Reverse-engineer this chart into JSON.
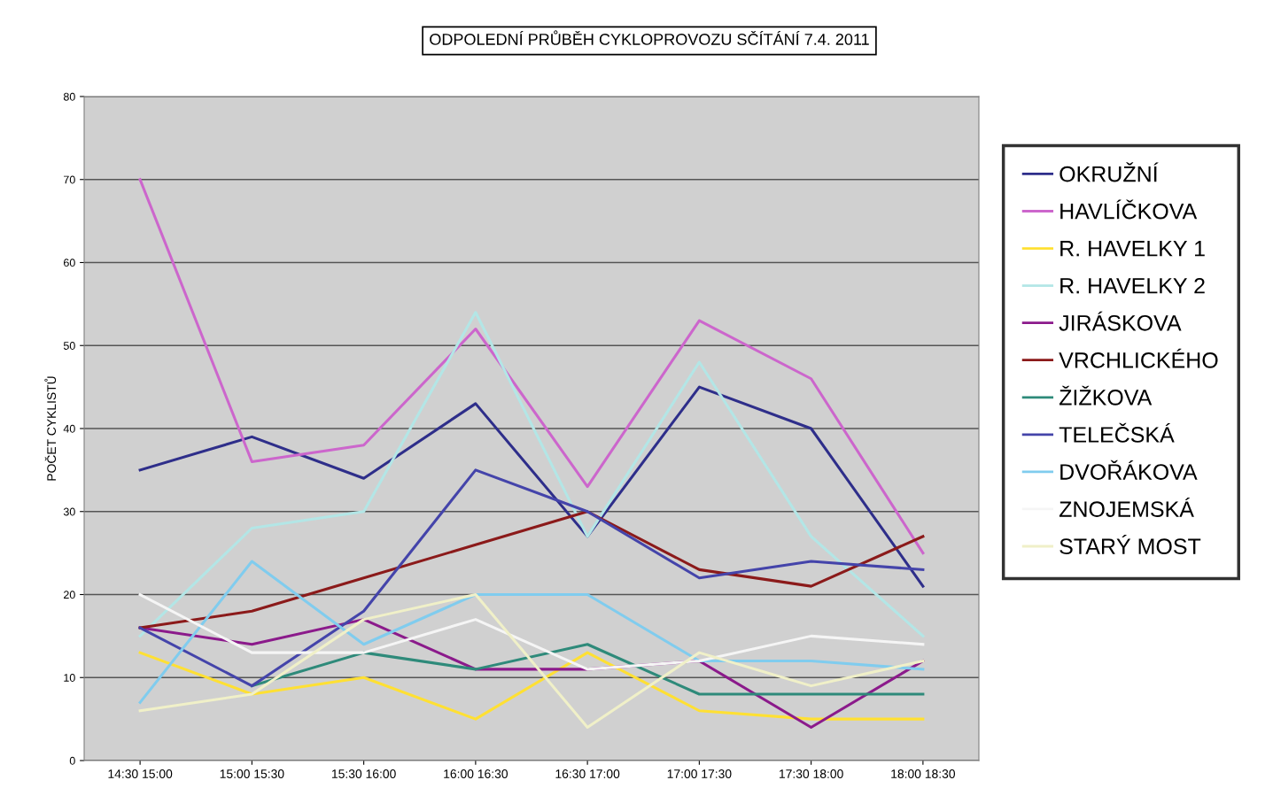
{
  "chart_data": {
    "type": "line",
    "title": "ODPOLEDNÍ PRŮBĚH CYKLOPROVOZU SČÍTÁNÍ 7.4. 2011",
    "ylabel": "POČET CYKLISTŮ",
    "categories": [
      "14:30 15:00",
      "15:00 15:30",
      "15:30 16:00",
      "16:00 16:30",
      "16:30 17:00",
      "17:00 17:30",
      "17:30 18:00",
      "18:00 18:30"
    ],
    "ylim": [
      0,
      80
    ],
    "yticks": [
      0,
      10,
      20,
      30,
      40,
      50,
      60,
      70,
      80
    ],
    "grid": "y",
    "legend": "right",
    "marker": "none",
    "line_style": "solid",
    "series": [
      {
        "name": "OKRUŽNÍ",
        "color": "#2e2e8a",
        "values": [
          35,
          39,
          34,
          43,
          27,
          45,
          40,
          21
        ]
      },
      {
        "name": "HAVLÍČKOVA",
        "color": "#cc66cc",
        "values": [
          70,
          36,
          38,
          52,
          33,
          53,
          46,
          25
        ]
      },
      {
        "name": "R. HAVELKY 1",
        "color": "#ffe033",
        "values": [
          13,
          8,
          10,
          5,
          13,
          6,
          5,
          5
        ]
      },
      {
        "name": "R. HAVELKY 2",
        "color": "#b3e6e6",
        "values": [
          15,
          28,
          30,
          54,
          27,
          48,
          27,
          15
        ]
      },
      {
        "name": "JIRÁSKOVA",
        "color": "#8b1a8b",
        "values": [
          16,
          14,
          17,
          11,
          11,
          12,
          4,
          12
        ]
      },
      {
        "name": "VRCHLICKÉHO",
        "color": "#8b1a1a",
        "values": [
          16,
          18,
          22,
          26,
          30,
          23,
          21,
          27
        ]
      },
      {
        "name": "ŽIŽKOVA",
        "color": "#2e8a7a",
        "values": [
          null,
          9,
          13,
          11,
          14,
          8,
          8,
          8
        ]
      },
      {
        "name": "TELEČSKÁ",
        "color": "#4444aa",
        "values": [
          16,
          9,
          18,
          35,
          30,
          22,
          24,
          23
        ]
      },
      {
        "name": "DVOŘÁKOVA",
        "color": "#80ccee",
        "values": [
          7,
          24,
          14,
          20,
          20,
          12,
          12,
          11
        ]
      },
      {
        "name": "ZNOJEMSKÁ",
        "color": "#f5f5f5",
        "values": [
          20,
          13,
          13,
          17,
          11,
          12,
          15,
          14
        ]
      },
      {
        "name": "STARÝ MOST",
        "color": "#f0f0c8",
        "values": [
          6,
          8,
          17,
          20,
          4,
          13,
          9,
          12
        ]
      }
    ]
  }
}
